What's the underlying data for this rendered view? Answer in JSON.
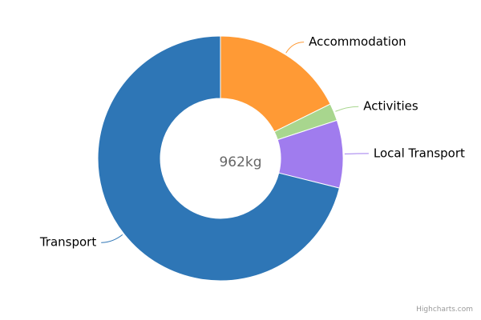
{
  "chart_data": {
    "type": "pie",
    "variant": "donut",
    "center_label": "962kg",
    "slices": [
      {
        "name": "Accommodation",
        "value": 170,
        "color": "#FF9A35"
      },
      {
        "name": "Activities",
        "value": 22,
        "color": "#A8D68E"
      },
      {
        "name": "Local Transport",
        "value": 86,
        "color": "#A07CEE"
      },
      {
        "name": "Transport",
        "value": 684,
        "color": "#2E76B6"
      }
    ]
  },
  "credit": "Highcharts.com"
}
